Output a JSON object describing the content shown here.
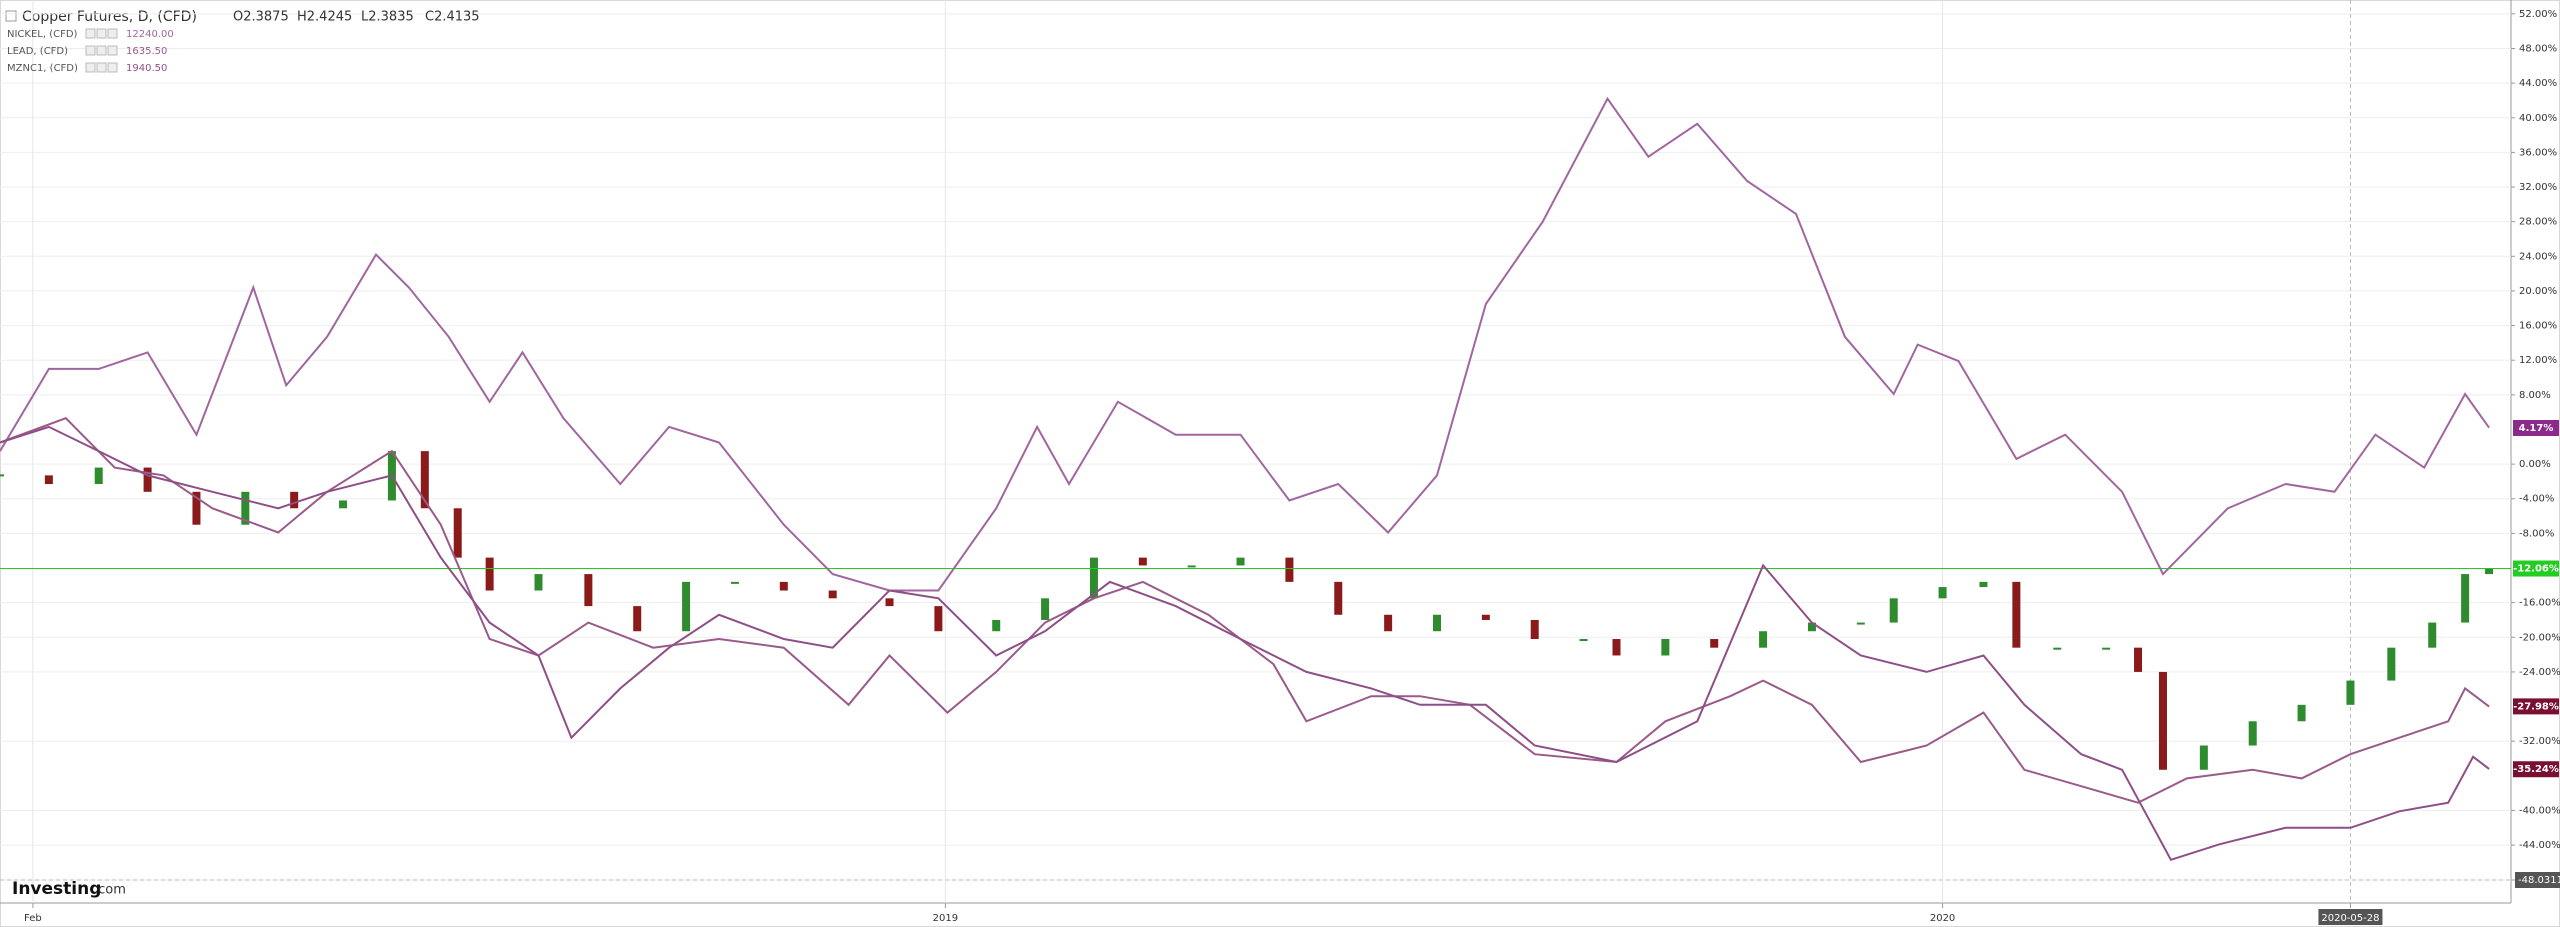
{
  "chart_data": {
    "type": "line",
    "title": "Copper Futures, D, (CFD)",
    "ohlc": [
      "O2.3875",
      "H2.4245",
      "L2.3835",
      "C2.4135"
    ],
    "logo": {
      "brand": "Investing",
      "suffix": ".com"
    },
    "xlim": [
      2018.052,
      2020.57
    ],
    "xticks": [
      {
        "value": 2018.085,
        "label": "Feb"
      },
      2019,
      2020,
      {
        "value": 2020.409,
        "label": "2020-05-28"
      }
    ],
    "ylim": [
      -48.0311,
      53.6
    ],
    "yticks": [
      {
        "value": 52,
        "label": "52.00%"
      },
      {
        "value": 48,
        "label": "48.00%"
      },
      {
        "value": 44,
        "label": "44.00%"
      },
      {
        "value": 40,
        "label": "40.00%"
      },
      {
        "value": 36,
        "label": "36.00%"
      },
      {
        "value": 32,
        "label": "32.00%"
      },
      {
        "value": 28,
        "label": "28.00%"
      },
      {
        "value": 24,
        "label": "24.00%"
      },
      {
        "value": 20,
        "label": "20.00%"
      },
      {
        "value": 16,
        "label": "16.00%"
      },
      {
        "value": 12,
        "label": "12.00%"
      },
      {
        "value": 8,
        "label": "8.00%"
      },
      {
        "value": 0,
        "label": "0.00%"
      },
      {
        "value": -4,
        "label": "-4.00%"
      },
      {
        "value": -8,
        "label": "-8.00%"
      },
      {
        "value": -16,
        "label": "-16.00%"
      },
      {
        "value": -20,
        "label": "-20.00%"
      },
      {
        "value": -24,
        "label": "-24.00%"
      },
      {
        "value": -32,
        "label": "-32.00%"
      },
      {
        "value": -40,
        "label": "-40.00%"
      },
      {
        "value": -44,
        "label": "-44.00%"
      },
      -48.0311
    ],
    "grid": true,
    "series": [
      {
        "name": "Copper Futures, D, (CFD)",
        "style": "candle",
        "up_color": "#2e8b2e",
        "down_color": "#8b1a1a",
        "end_label": {
          "value": -12.06,
          "label": "-12.06%"
        },
        "end_color": "#22cc22",
        "x": [
          2018.052,
          2018.101,
          2018.151,
          2018.2,
          2018.249,
          2018.298,
          2018.347,
          2018.396,
          2018.445,
          2018.478,
          2018.511,
          2018.543,
          2018.592,
          2018.642,
          2018.691,
          2018.74,
          2018.789,
          2018.838,
          2018.887,
          2018.944,
          2018.993,
          2019.051,
          2019.1,
          2019.149,
          2019.198,
          2019.247,
          2019.296,
          2019.345,
          2019.394,
          2019.444,
          2019.493,
          2019.542,
          2019.591,
          2019.64,
          2019.673,
          2019.722,
          2019.771,
          2019.82,
          2019.869,
          2019.918,
          2019.951,
          2020.0,
          2020.041,
          2020.074,
          2020.115,
          2020.164,
          2020.196,
          2020.221,
          2020.262,
          2020.311,
          2020.36,
          2020.409,
          2020.45,
          2020.491,
          2020.524,
          2020.548
        ],
        "values": [
          -1.3,
          -2.3,
          -0.4,
          -3.2,
          -7,
          -3.2,
          -5.1,
          -4.2,
          1.5,
          -5.1,
          -10.8,
          -14.6,
          -12.7,
          -16.4,
          -19.3,
          -13.6,
          -13.6,
          -14.6,
          -15.5,
          -16.4,
          -19.3,
          -18,
          -15.5,
          -10.8,
          -11.7,
          -11.7,
          -10.8,
          -13.6,
          -17.4,
          -19.3,
          -17.4,
          -18,
          -20.2,
          -20.2,
          -22.1,
          -20.2,
          -21.2,
          -19.3,
          -18.3,
          -18.3,
          -15.5,
          -14.2,
          -13.6,
          -21.2,
          -21.2,
          -21.2,
          -24,
          -35.3,
          -32.5,
          -29.7,
          -27.8,
          -25,
          -21.2,
          -18.3,
          -12.7,
          -12.1
        ]
      },
      {
        "name": "NICKEL, (CFD)",
        "price_label": "12240.00",
        "color": "#a0669f",
        "end_label": {
          "value": 4.17,
          "label": "4.17%"
        },
        "end_color": "#8b2a8b",
        "x": [
          2018.052,
          2018.101,
          2018.151,
          2018.2,
          2018.249,
          2018.306,
          2018.339,
          2018.38,
          2018.429,
          2018.462,
          2018.502,
          2018.543,
          2018.576,
          2018.617,
          2018.674,
          2018.723,
          2018.773,
          2018.838,
          2018.887,
          2018.944,
          2018.993,
          2019.051,
          2019.092,
          2019.124,
          2019.173,
          2019.231,
          2019.296,
          2019.345,
          2019.394,
          2019.444,
          2019.493,
          2019.542,
          2019.599,
          2019.664,
          2019.705,
          2019.754,
          2019.804,
          2019.853,
          2019.902,
          2019.951,
          2019.975,
          2020.016,
          2020.074,
          2020.123,
          2020.18,
          2020.221,
          2020.286,
          2020.344,
          2020.393,
          2020.434,
          2020.483,
          2020.524,
          2020.548
        ],
        "values": [
          1.5,
          11,
          11,
          12.9,
          3.4,
          20.4,
          9.1,
          14.7,
          24.2,
          20.4,
          14.7,
          7.2,
          12.9,
          5.3,
          -2.3,
          4.3,
          2.5,
          -7,
          -12.7,
          -14.6,
          -14.6,
          -5.1,
          4.3,
          -2.3,
          7.2,
          3.4,
          3.4,
          -4.2,
          -2.3,
          -7.9,
          -1.3,
          18.5,
          28,
          42.2,
          35.5,
          39.3,
          32.7,
          28.9,
          14.7,
          8.1,
          13.8,
          11.9,
          0.6,
          3.4,
          -3.2,
          -12.7,
          -5.1,
          -2.3,
          -3.2,
          3.4,
          -0.4,
          8.1,
          4.2
        ]
      },
      {
        "name": "LEAD, (CFD)",
        "price_label": "1635.50",
        "color": "#9a5a8a",
        "end_label": {
          "value": -27.98,
          "label": "-27.98%"
        },
        "end_color": "#7a1030",
        "x": [
          2018.052,
          2018.118,
          2018.167,
          2018.216,
          2018.265,
          2018.331,
          2018.38,
          2018.445,
          2018.494,
          2018.543,
          2018.592,
          2018.642,
          2018.707,
          2018.773,
          2018.838,
          2018.903,
          2018.944,
          2019.002,
          2019.051,
          2019.1,
          2019.149,
          2019.198,
          2019.264,
          2019.329,
          2019.362,
          2019.427,
          2019.476,
          2019.526,
          2019.591,
          2019.673,
          2019.722,
          2019.787,
          2019.82,
          2019.869,
          2019.918,
          2019.984,
          2020.041,
          2020.082,
          2020.139,
          2020.196,
          2020.245,
          2020.311,
          2020.36,
          2020.409,
          2020.458,
          2020.507,
          2020.524,
          2020.548
        ],
        "values": [
          2.5,
          5.3,
          -0.4,
          -1.3,
          -5.1,
          -7.9,
          -3.2,
          1.5,
          -7,
          -20.2,
          -22.1,
          -18.3,
          -21.2,
          -20.2,
          -21.2,
          -27.8,
          -22.1,
          -28.7,
          -24,
          -18.3,
          -15.5,
          -13.6,
          -17.4,
          -23.1,
          -29.7,
          -26.8,
          -26.8,
          -27.8,
          -33.5,
          -34.4,
          -29.7,
          -26.8,
          -25,
          -27.8,
          -34.4,
          -32.5,
          -28.7,
          -35.3,
          -37.2,
          -39.1,
          -36.3,
          -35.3,
          -36.3,
          -33.5,
          -31.6,
          -29.7,
          -25.9,
          -28
        ]
      },
      {
        "name": "MZNC1, (CFD)",
        "price_label": "1940.50",
        "color": "#8e4f86",
        "end_label": {
          "value": -35.24,
          "label": "-35.24%"
        },
        "end_color": "#7a1030",
        "x": [
          2018.052,
          2018.101,
          2018.151,
          2018.2,
          2018.265,
          2018.331,
          2018.38,
          2018.445,
          2018.494,
          2018.543,
          2018.592,
          2018.625,
          2018.674,
          2018.723,
          2018.773,
          2018.838,
          2018.887,
          2018.944,
          2018.993,
          2019.051,
          2019.1,
          2019.165,
          2019.231,
          2019.296,
          2019.362,
          2019.427,
          2019.476,
          2019.542,
          2019.591,
          2019.673,
          2019.754,
          2019.82,
          2019.869,
          2019.918,
          2019.984,
          2020.041,
          2020.082,
          2020.139,
          2020.18,
          2020.229,
          2020.278,
          2020.344,
          2020.409,
          2020.458,
          2020.507,
          2020.532,
          2020.548
        ],
        "values": [
          2.5,
          4.3,
          1.5,
          -1.3,
          -3.2,
          -5.1,
          -3.2,
          -1.3,
          -10.8,
          -18.3,
          -22.1,
          -31.6,
          -25.9,
          -21.2,
          -17.4,
          -20.2,
          -21.2,
          -14.6,
          -15.5,
          -22.1,
          -19.3,
          -13.6,
          -16.4,
          -20.2,
          -24,
          -25.9,
          -27.8,
          -27.8,
          -32.5,
          -34.4,
          -29.7,
          -11.7,
          -18.3,
          -22.1,
          -24,
          -22.1,
          -27.8,
          -33.5,
          -35.3,
          -45.7,
          -43.9,
          -42,
          -42,
          -40.1,
          -39.1,
          -33.8,
          -35.2
        ]
      }
    ]
  }
}
